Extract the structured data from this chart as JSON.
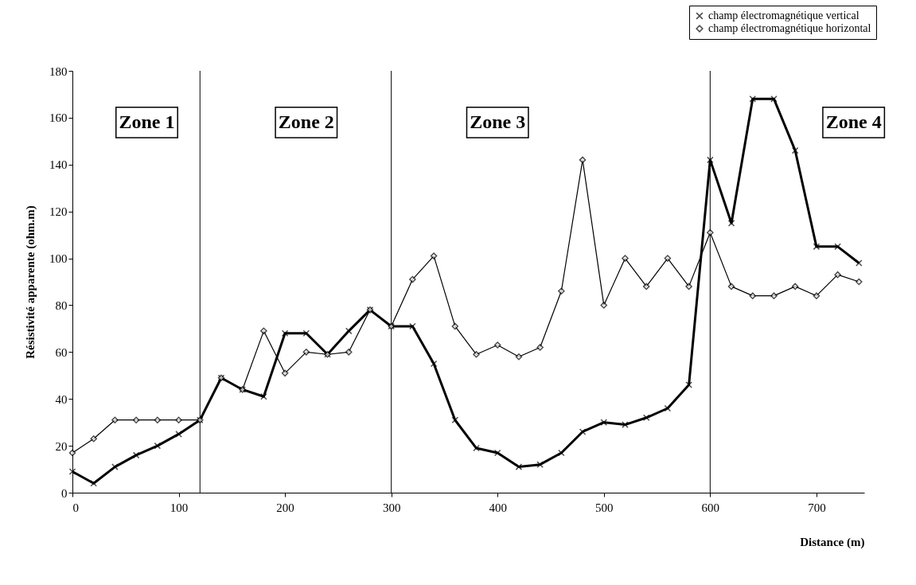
{
  "chart_data": {
    "type": "line",
    "xlabel": "Distance (m)",
    "ylabel": "Résistivité apparente (ohm.m)",
    "x": [
      0,
      20,
      40,
      60,
      80,
      100,
      120,
      140,
      160,
      180,
      200,
      220,
      240,
      260,
      280,
      300,
      320,
      340,
      360,
      380,
      400,
      420,
      440,
      460,
      480,
      500,
      520,
      540,
      560,
      580,
      600,
      620,
      640,
      660,
      680,
      700,
      720,
      740
    ],
    "series": [
      {
        "name": "champ électromagnétique vertical",
        "color": "#000000",
        "marker": "cross",
        "values": [
          9,
          4,
          11,
          16,
          20,
          25,
          31,
          49,
          44,
          41,
          68,
          68,
          59,
          69,
          78,
          71,
          71,
          55,
          31,
          19,
          17,
          11,
          12,
          17,
          26,
          30,
          29,
          32,
          36,
          46,
          142,
          115,
          168,
          168,
          146,
          105,
          105,
          98
        ]
      },
      {
        "name": "champ électromagnétique horizontal",
        "color": "#000000",
        "marker": "diamond",
        "values": [
          17,
          23,
          31,
          31,
          31,
          31,
          31,
          49,
          44,
          69,
          51,
          60,
          59,
          60,
          78,
          71,
          91,
          101,
          71,
          59,
          63,
          58,
          62,
          86,
          142,
          80,
          100,
          88,
          100,
          88,
          111,
          88,
          84,
          84,
          88,
          84,
          93,
          90
        ]
      }
    ],
    "xlim": [
      0,
      745
    ],
    "xticks": [
      0,
      100,
      200,
      300,
      400,
      500,
      600,
      700
    ],
    "ylim": [
      0,
      180
    ],
    "yticks": [
      0,
      20,
      40,
      60,
      80,
      100,
      120,
      140,
      160,
      180
    ],
    "ref_lines": [
      {
        "axis": "x",
        "value": 120
      },
      {
        "axis": "x",
        "value": 300
      },
      {
        "axis": "x",
        "value": 600
      }
    ],
    "annotations": [
      "Zone 1",
      "Zone 2",
      "Zone 3",
      "Zone 4"
    ],
    "grid": false,
    "legend": "top right",
    "line_style": "solid"
  }
}
